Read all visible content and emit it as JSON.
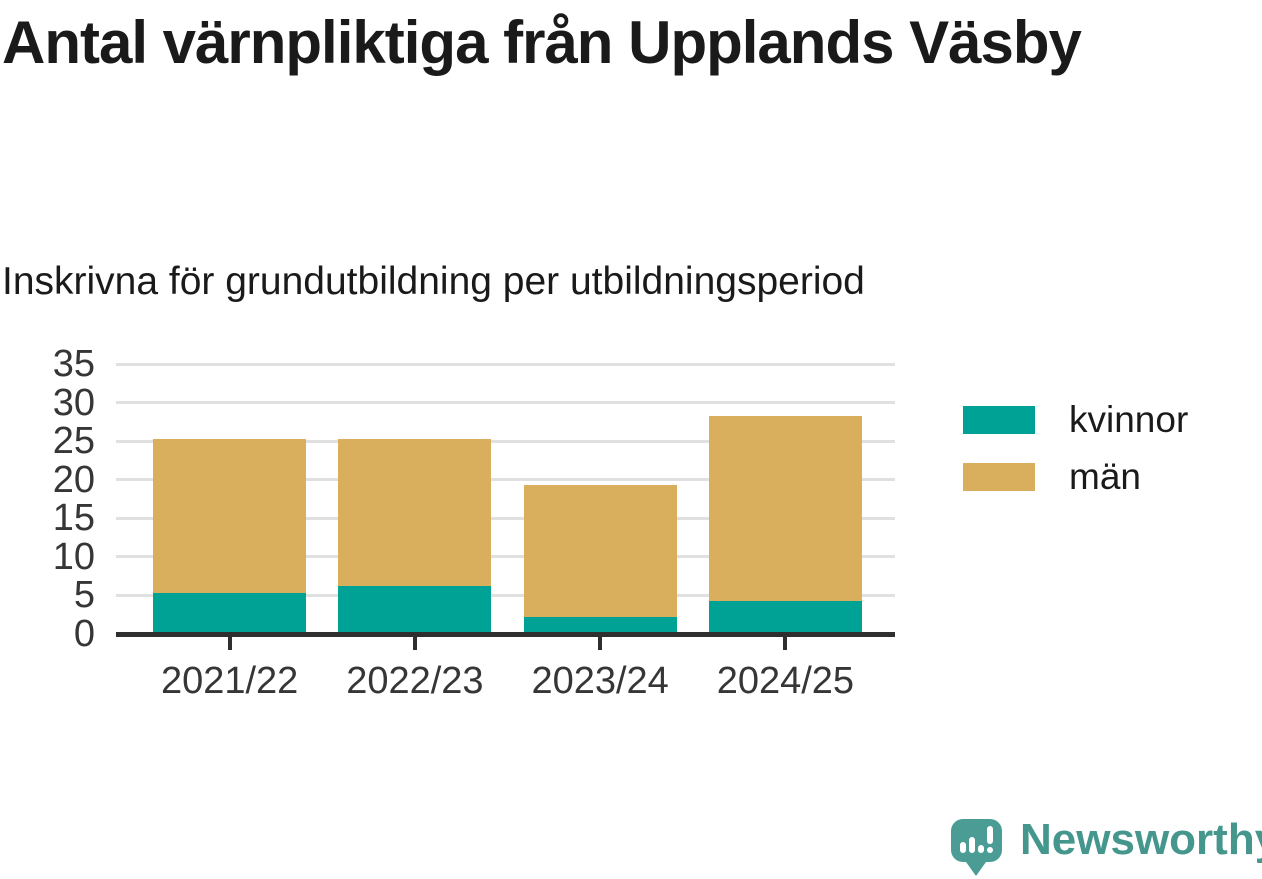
{
  "header": {
    "title": "Antal värnpliktiga från Upplands Väsby",
    "subtitle": "Inskrivna för grundutbildning per utbildningsperiod"
  },
  "chart_data": {
    "type": "bar",
    "stacked": true,
    "title": "Antal värnpliktiga från Upplands Väsby",
    "subtitle": "Inskrivna för grundutbildning per utbildningsperiod",
    "categories": [
      "2021/22",
      "2022/23",
      "2023/24",
      "2024/25"
    ],
    "series": [
      {
        "name": "kvinnor",
        "color": "#00A296",
        "values": [
          5,
          6,
          2,
          4
        ]
      },
      {
        "name": "män",
        "color": "#D9AE5C",
        "values": [
          20,
          19,
          17,
          24
        ]
      }
    ],
    "totals": [
      25,
      25,
      19,
      28
    ],
    "xlabel": "",
    "ylabel": "",
    "ylim": [
      0,
      35
    ],
    "ytick_step": 5,
    "yticks": [
      0,
      5,
      10,
      15,
      20,
      25,
      30,
      35
    ],
    "grid": true,
    "legend_position": "right"
  },
  "footer": {
    "brand": "Newsworthy"
  },
  "colors": {
    "grid": "#E0E0E0",
    "axis": "#2F2F2F",
    "tick_label": "#363636",
    "text": "#1A1A1A",
    "kvinnor": "#00A296",
    "man": "#D9AE5C",
    "brand_bubble": "#4A9C94",
    "brand_text": "#45968D"
  }
}
